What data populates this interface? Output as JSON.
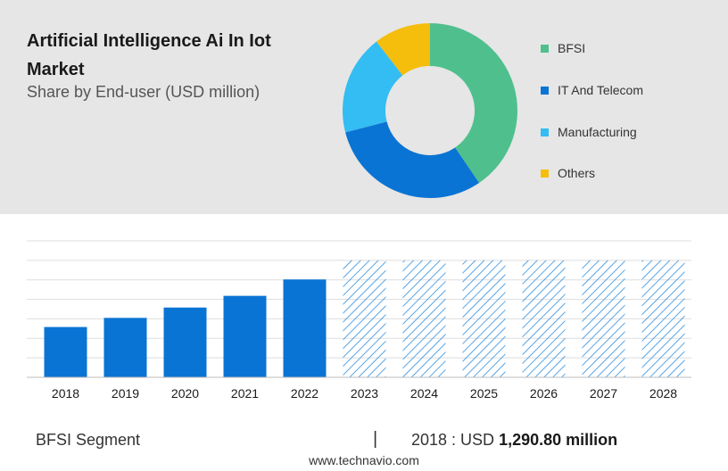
{
  "header": {
    "title": "Artificial Intelligence Ai In Iot Market",
    "subtitle": "Share by End-user (USD million)"
  },
  "donut_legend": [
    {
      "label": "BFSI",
      "color": "#4fc08d"
    },
    {
      "label": "IT And Telecom",
      "color": "#0a74d4"
    },
    {
      "label": "Manufacturing",
      "color": "#33bdf2"
    },
    {
      "label": "Others",
      "color": "#f5bd0c"
    }
  ],
  "chart_data": [
    {
      "type": "pie",
      "categories": [
        "BFSI",
        "IT And Telecom",
        "Manufacturing",
        "Others"
      ],
      "values": [
        40.5,
        30.5,
        18.5,
        10.5
      ],
      "unit": "percent share (estimated)",
      "colors": [
        "#4fc08d",
        "#0a74d4",
        "#33bdf2",
        "#f5bd0c"
      ],
      "legend_position": "right"
    },
    {
      "type": "bar",
      "categories": [
        "2018",
        "2019",
        "2020",
        "2021",
        "2022",
        "2023",
        "2024",
        "2025",
        "2026",
        "2027",
        "2028"
      ],
      "values": [
        1290.8,
        1525,
        1790,
        2090,
        2510,
        null,
        null,
        null,
        null,
        null,
        null
      ],
      "forecast_years": [
        "2023",
        "2024",
        "2025",
        "2026",
        "2027",
        "2028"
      ],
      "ylim": [
        0,
        3500
      ],
      "grid": true,
      "colors": {
        "actual": "#0a74d4",
        "forecast_hatch": "#2e8fe0"
      }
    }
  ],
  "footer": {
    "segment": "BFSI Segment",
    "separator": "|",
    "stat_prefix": "2018 : USD ",
    "stat_value": "1,290.80 million",
    "source": "www.technavio.com"
  }
}
